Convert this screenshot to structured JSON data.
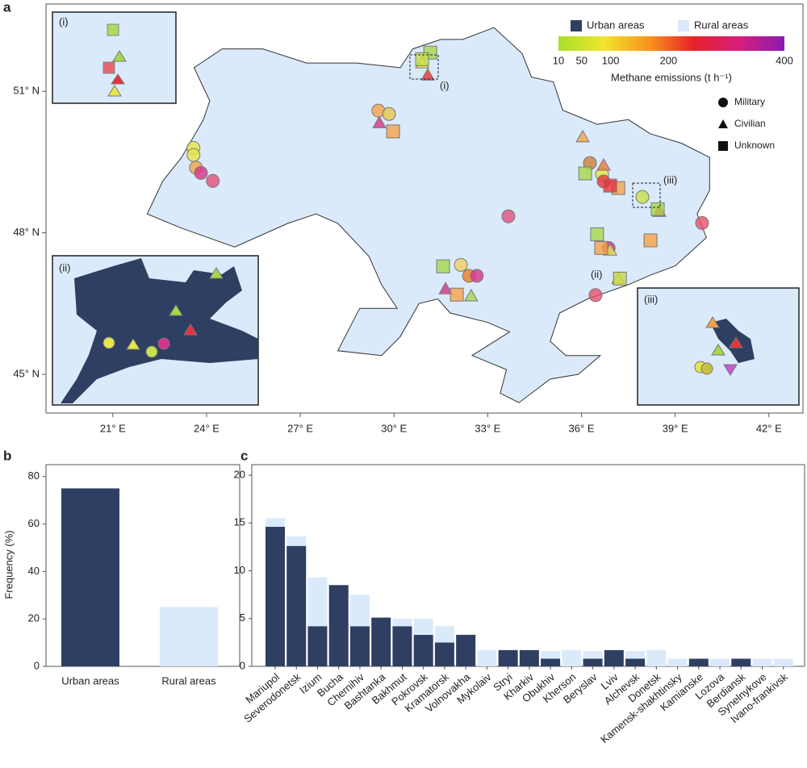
{
  "chart_data": [
    {
      "type": "map",
      "panel_label": "a",
      "xlim": [
        18.86,
        43.09
      ],
      "ylim": [
        44.18,
        52.85
      ],
      "xticks": [
        {
          "value": 21,
          "label": "21° E"
        },
        {
          "value": 24,
          "label": "24° E"
        },
        {
          "value": 27,
          "label": "27° E"
        },
        {
          "value": 30,
          "label": "30° E"
        },
        {
          "value": 33,
          "label": "33° E"
        },
        {
          "value": 36,
          "label": "36° E"
        },
        {
          "value": 39,
          "label": "39° E"
        },
        {
          "value": 42,
          "label": "42° E"
        }
      ],
      "yticks": [
        {
          "value": 45,
          "label": "45° N"
        },
        {
          "value": 48,
          "label": "48° N"
        },
        {
          "value": 51,
          "label": "51° N"
        }
      ],
      "area_legend": [
        {
          "name": "Urban areas",
          "color": "#2e3f62"
        },
        {
          "name": "Rural areas",
          "color": "#dbeafb"
        }
      ],
      "colorbar": {
        "label": "Methane emissions (t h⁻¹)",
        "lim": [
          10,
          400
        ],
        "ticks": [
          10,
          50,
          100,
          200,
          400
        ],
        "colors": [
          "#a6e02a",
          "#f2e52e",
          "#f7941d",
          "#e8202a",
          "#d61f7d",
          "#8b1ab0"
        ]
      },
      "insets": [
        "(i)",
        "(ii)",
        "(iii)"
      ],
      "legend": "upper right",
      "series": [
        {
          "name": "Military",
          "marker": "circle",
          "x": [
            23.58,
            23.58,
            23.66,
            23.82,
            24.2,
            29.5,
            29.84,
            33.66,
            32.14,
            32.4,
            32.65,
            36.27,
            36.66,
            36.71,
            37.95,
            39.86,
            36.87,
            36.45
          ],
          "y": [
            49.8,
            49.65,
            49.38,
            49.27,
            49.1,
            50.59,
            50.52,
            48.35,
            47.32,
            47.09,
            47.09,
            49.48,
            49.24,
            49.09,
            48.76,
            48.21,
            47.68,
            46.68
          ],
          "colors": [
            "#e7e64a",
            "#e7e64a",
            "#f5a24a",
            "#d6338a",
            "#e0507a",
            "#f5a24a",
            "#e7c64a",
            "#e0507a",
            "#f2d060",
            "#f07a20",
            "#d6338a",
            "#d0803a",
            "#e7e64a",
            "#e8323a",
            "#c8e04a",
            "#e8506a",
            "#d6338a",
            "#e8506a"
          ]
        },
        {
          "name": "Civilian",
          "marker": "triangle",
          "x": [
            31.08,
            30.9,
            29.53,
            36.04,
            36.71,
            38.49,
            31.65,
            32.47,
            37.18,
            36.92
          ],
          "y": [
            51.34,
            51.6,
            50.33,
            50.03,
            49.43,
            48.45,
            46.81,
            46.66,
            47.03,
            47.63
          ],
          "colors": [
            "#e8323a",
            "#e7e64a",
            "#d6338a",
            "#f5a24a",
            "#f07a40",
            "#e8323a",
            "#d6338a",
            "#a6d84a",
            "#e7e64a",
            "#e7e64a"
          ]
        },
        {
          "name": "Unknown",
          "marker": "square",
          "x": [
            31.16,
            30.9,
            29.97,
            36.12,
            37.18,
            36.92,
            36.5,
            38.21,
            36.63,
            31.57,
            32.01,
            37.23,
            38.44
          ],
          "y": [
            51.82,
            51.68,
            50.15,
            49.26,
            48.95,
            49.0,
            47.97,
            47.84,
            47.68,
            47.29,
            46.69,
            47.03,
            48.5
          ],
          "colors": [
            "#a6d84a",
            "#c8e04a",
            "#f5a24a",
            "#a6d84a",
            "#f5a24a",
            "#e8323a",
            "#a6d84a",
            "#f5a24a",
            "#f5a24a",
            "#a6d84a",
            "#f5a24a",
            "#c8d84a",
            "#a6d84a"
          ]
        }
      ]
    },
    {
      "type": "bar",
      "panel_label": "b",
      "ylabel": "Frequency (%)",
      "categories": [
        "Urban areas",
        "Rural areas"
      ],
      "values": [
        75,
        25
      ],
      "colors": [
        "#2e3f62",
        "#dbeafb"
      ],
      "ylim": [
        0,
        85
      ],
      "yticks": [
        0,
        20,
        40,
        60,
        80
      ]
    },
    {
      "type": "stacked_bar",
      "panel_label": "c",
      "categories": [
        "Mariupol",
        "Severodonetsk",
        "Izium",
        "Bucha",
        "Chernihiv",
        "Bashtanka",
        "Bakhmut",
        "Pokrovsk",
        "Kramatorsk",
        "Volnovakha",
        "Mykolaiv",
        "Stryi",
        "Kharkiv",
        "Obukhiv",
        "Kherson",
        "Beryslav",
        "Lviv",
        "Alchevsk",
        "Donetsk",
        "Kamensk-shakhtinsky",
        "Kamianske",
        "Lozova",
        "Berdiansk",
        "Synelnykove",
        "Ivano-frankivsk"
      ],
      "series": [
        {
          "name": "Urban areas",
          "color": "#2e3f62",
          "values": [
            14.6,
            12.6,
            4.2,
            8.5,
            4.2,
            5.1,
            4.2,
            3.3,
            2.5,
            3.3,
            0,
            1.7,
            1.7,
            0.8,
            0,
            0.8,
            1.7,
            0.8,
            0,
            0,
            0.8,
            0,
            0.8,
            0,
            0
          ]
        },
        {
          "name": "Rural areas",
          "color": "#dbeafb",
          "values": [
            0.9,
            1.0,
            5.1,
            0,
            3.3,
            0,
            0.8,
            1.7,
            1.7,
            0,
            1.7,
            0,
            0,
            0.8,
            1.7,
            0.8,
            0,
            0.8,
            1.7,
            0.8,
            0,
            0.8,
            0,
            0.8,
            0.8
          ]
        }
      ],
      "ylim": [
        0,
        21.1
      ],
      "yticks": [
        0,
        5,
        10,
        15,
        20
      ]
    }
  ]
}
